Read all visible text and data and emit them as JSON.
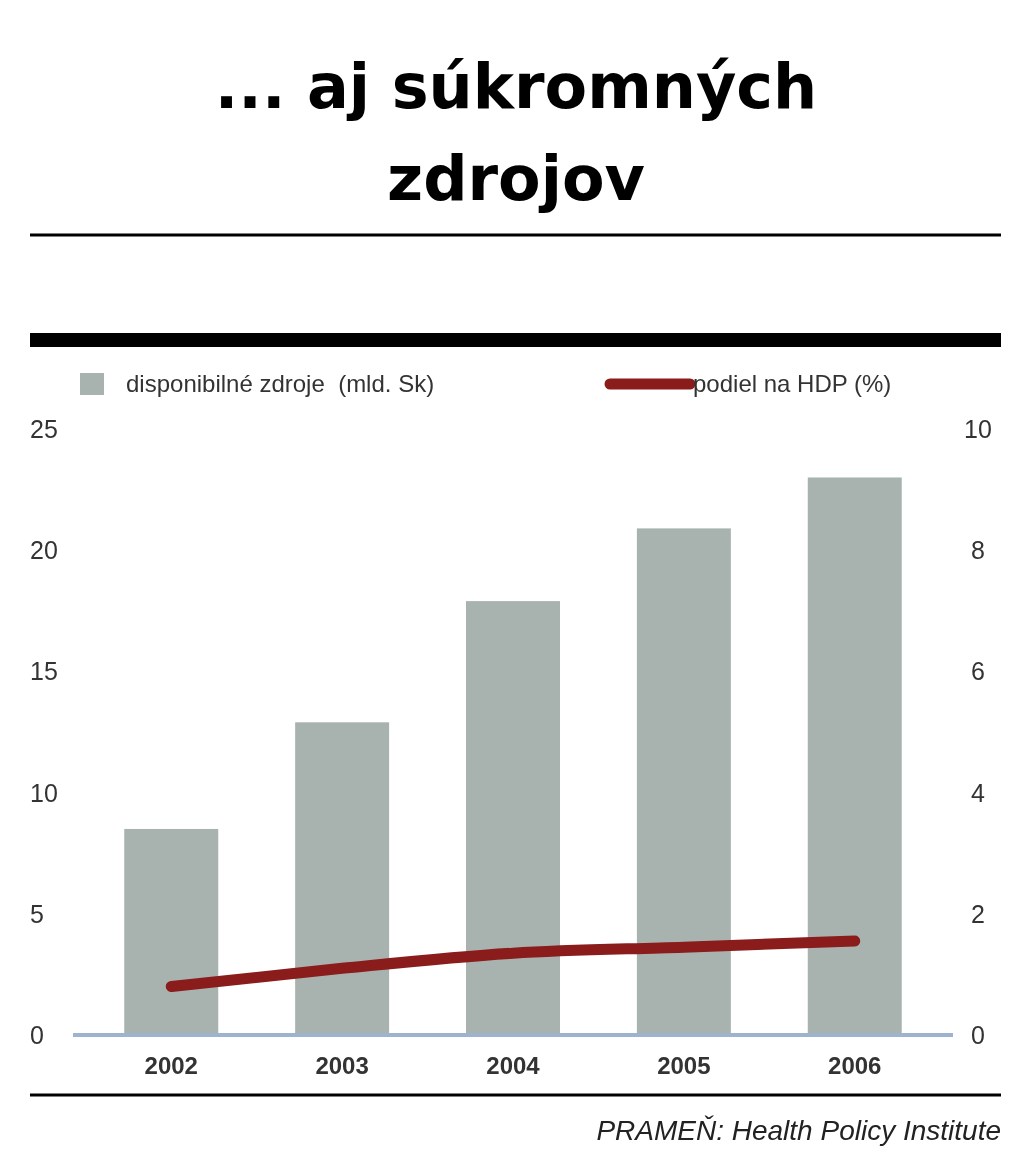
{
  "chart_data": {
    "type": "bar",
    "title": "... aj súkromných zdrojov",
    "categories": [
      "2002",
      "2003",
      "2004",
      "2005",
      "2006"
    ],
    "series": [
      {
        "name": "disponibilné zdroje  (mld. Sk)",
        "color": "#a8b3af",
        "values": [
          8.5,
          12.9,
          17.9,
          20.9,
          23.0
        ]
      },
      {
        "name": "podiel na HDP (%)",
        "type": "line",
        "axis": "y2",
        "color": "#8a1c1c",
        "values": [
          0.8,
          1.1,
          1.35,
          1.45,
          1.55
        ]
      }
    ],
    "ylim": [
      0,
      25
    ],
    "yticks": [
      0,
      5,
      10,
      15,
      20,
      25
    ],
    "y2lim": [
      0,
      10
    ],
    "y2ticks": [
      0,
      2,
      4,
      6,
      8,
      10
    ],
    "legend": "top left",
    "grid": false,
    "annotations": [
      "PRAMEŇ: Health Policy Institute"
    ]
  }
}
